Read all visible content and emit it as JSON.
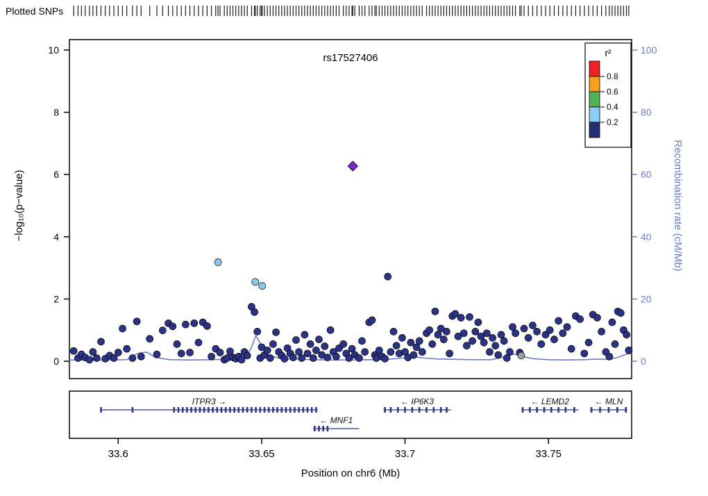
{
  "header": {
    "plotted_snps_label": "Plotted SNPs"
  },
  "chart_data": {
    "type": "scatter",
    "title": "rs17527406",
    "xlabel": "Position on chr6 (Mb)",
    "ylabel_left": "−log₁₀(p−value)",
    "ylabel_right": "Recombination rate (cM/Mb)",
    "xlim": [
      33.583,
      33.779
    ],
    "ylim_left": [
      0,
      10
    ],
    "ylim_right": [
      0,
      100
    ],
    "x_ticks": [
      "33.6",
      "33.65",
      "33.7",
      "33.75"
    ],
    "y_ticks_left": [
      0,
      2,
      4,
      6,
      8,
      10
    ],
    "y_ticks_right": [
      0,
      20,
      40,
      60,
      80,
      100
    ],
    "grid": false,
    "legend": {
      "title": "r²",
      "position": "top-right",
      "colors": [
        "#EC2226",
        "#F9A11B",
        "#52B153",
        "#8CCCF0",
        "#262F74"
      ],
      "labels": [
        "0.8",
        "0.6",
        "0.4",
        "0.2"
      ]
    },
    "index_snp": {
      "name": "rs17527406",
      "pos": 33.6818,
      "log10p": 6.27,
      "color": "#7D26CD",
      "shape": "diamond"
    },
    "ld_groups": [
      {
        "name": "r2_0.2_0.4",
        "color": "#8CCCF0",
        "points": [
          [
            33.6348,
            3.18
          ],
          [
            33.6478,
            2.55
          ],
          [
            33.6502,
            2.42
          ]
        ]
      },
      {
        "name": "r2_below_0.2",
        "color": "#2B3387",
        "points": [
          [
            33.5845,
            0.33
          ],
          [
            33.586,
            0.1
          ],
          [
            33.5872,
            0.22
          ],
          [
            33.5885,
            0.12
          ],
          [
            33.59,
            0.05
          ],
          [
            33.5912,
            0.3
          ],
          [
            33.5925,
            0.1
          ],
          [
            33.594,
            0.63
          ],
          [
            33.5955,
            0.08
          ],
          [
            33.597,
            0.18
          ],
          [
            33.5985,
            0.1
          ],
          [
            33.6,
            0.28
          ],
          [
            33.6015,
            1.05
          ],
          [
            33.603,
            0.4
          ],
          [
            33.605,
            0.1
          ],
          [
            33.6065,
            1.28
          ],
          [
            33.608,
            0.15
          ],
          [
            33.611,
            0.72
          ],
          [
            33.6135,
            0.22
          ],
          [
            33.6155,
            0.99
          ],
          [
            33.6175,
            1.22
          ],
          [
            33.619,
            1.12
          ],
          [
            33.6205,
            0.55
          ],
          [
            33.622,
            0.25
          ],
          [
            33.6235,
            1.18
          ],
          [
            33.625,
            0.28
          ],
          [
            33.6265,
            1.22
          ],
          [
            33.628,
            0.6
          ],
          [
            33.6295,
            1.25
          ],
          [
            33.631,
            1.13
          ],
          [
            33.6325,
            0.15
          ],
          [
            33.634,
            0.4
          ],
          [
            33.6355,
            0.28
          ],
          [
            33.637,
            0.05
          ],
          [
            33.638,
            0.1
          ],
          [
            33.639,
            0.32
          ],
          [
            33.64,
            0.12
          ],
          [
            33.641,
            0.08
          ],
          [
            33.642,
            0.15
          ],
          [
            33.643,
            0.05
          ],
          [
            33.644,
            0.3
          ],
          [
            33.645,
            0.18
          ],
          [
            33.6465,
            1.75
          ],
          [
            33.6475,
            1.58
          ],
          [
            33.6485,
            0.95
          ],
          [
            33.6495,
            0.1
          ],
          [
            33.65,
            0.45
          ],
          [
            33.651,
            0.2
          ],
          [
            33.652,
            0.35
          ],
          [
            33.653,
            0.1
          ],
          [
            33.654,
            0.55
          ],
          [
            33.655,
            0.93
          ],
          [
            33.656,
            0.3
          ],
          [
            33.657,
            0.18
          ],
          [
            33.658,
            0.08
          ],
          [
            33.659,
            0.42
          ],
          [
            33.66,
            0.25
          ],
          [
            33.661,
            0.12
          ],
          [
            33.662,
            0.68
          ],
          [
            33.663,
            0.3
          ],
          [
            33.664,
            0.1
          ],
          [
            33.665,
            0.85
          ],
          [
            33.666,
            0.25
          ],
          [
            33.667,
            0.55
          ],
          [
            33.668,
            0.1
          ],
          [
            33.669,
            0.35
          ],
          [
            33.67,
            0.7
          ],
          [
            33.671,
            0.2
          ],
          [
            33.672,
            0.48
          ],
          [
            33.673,
            0.12
          ],
          [
            33.674,
            1.0
          ],
          [
            33.675,
            0.3
          ],
          [
            33.676,
            0.15
          ],
          [
            33.677,
            0.42
          ],
          [
            33.6785,
            0.55
          ],
          [
            33.6795,
            0.25
          ],
          [
            33.6805,
            0.1
          ],
          [
            33.6815,
            0.4
          ],
          [
            33.6825,
            0.2
          ],
          [
            33.684,
            0.1
          ],
          [
            33.685,
            0.65
          ],
          [
            33.686,
            0.3
          ],
          [
            33.6875,
            1.25
          ],
          [
            33.6885,
            1.32
          ],
          [
            33.6895,
            0.2
          ],
          [
            33.69,
            0.1
          ],
          [
            33.691,
            0.35
          ],
          [
            33.692,
            0.15
          ],
          [
            33.693,
            0.08
          ],
          [
            33.694,
            2.72
          ],
          [
            33.695,
            0.3
          ],
          [
            33.696,
            0.95
          ],
          [
            33.697,
            0.5
          ],
          [
            33.698,
            0.25
          ],
          [
            33.699,
            0.75
          ],
          [
            33.7,
            0.3
          ],
          [
            33.701,
            0.12
          ],
          [
            33.702,
            0.6
          ],
          [
            33.703,
            0.2
          ],
          [
            33.704,
            0.45
          ],
          [
            33.705,
            0.65
          ],
          [
            33.706,
            0.3
          ],
          [
            33.7075,
            0.9
          ],
          [
            33.7085,
            1.0
          ],
          [
            33.7095,
            0.55
          ],
          [
            33.7105,
            1.6
          ],
          [
            33.7115,
            0.85
          ],
          [
            33.7125,
            1.05
          ],
          [
            33.7135,
            0.7
          ],
          [
            33.7145,
            0.95
          ],
          [
            33.7155,
            0.25
          ],
          [
            33.7165,
            1.45
          ],
          [
            33.7175,
            1.52
          ],
          [
            33.7185,
            0.8
          ],
          [
            33.7195,
            1.4
          ],
          [
            33.7205,
            0.9
          ],
          [
            33.7215,
            0.5
          ],
          [
            33.7225,
            1.42
          ],
          [
            33.7235,
            0.65
          ],
          [
            33.7245,
            0.95
          ],
          [
            33.7255,
            1.25
          ],
          [
            33.7265,
            0.8
          ],
          [
            33.7275,
            0.6
          ],
          [
            33.7285,
            0.9
          ],
          [
            33.7295,
            0.3
          ],
          [
            33.7305,
            0.75
          ],
          [
            33.7315,
            0.5
          ],
          [
            33.7325,
            0.2
          ],
          [
            33.7335,
            0.85
          ],
          [
            33.7345,
            0.65
          ],
          [
            33.7355,
            0.1
          ],
          [
            33.7365,
            0.3
          ],
          [
            33.7375,
            1.1
          ],
          [
            33.7385,
            0.9
          ],
          [
            33.74,
            0.28
          ],
          [
            33.7415,
            1.05
          ],
          [
            33.743,
            0.75
          ],
          [
            33.7445,
            1.15
          ],
          [
            33.746,
            0.95
          ],
          [
            33.7475,
            0.55
          ],
          [
            33.749,
            0.85
          ],
          [
            33.7505,
            1.0
          ],
          [
            33.752,
            0.7
          ],
          [
            33.7535,
            1.3
          ],
          [
            33.755,
            0.9
          ],
          [
            33.7565,
            1.1
          ],
          [
            33.758,
            0.4
          ],
          [
            33.7595,
            1.45
          ],
          [
            33.761,
            1.35
          ],
          [
            33.7625,
            0.25
          ],
          [
            33.764,
            0.6
          ],
          [
            33.7655,
            1.5
          ],
          [
            33.767,
            1.4
          ],
          [
            33.7685,
            0.95
          ],
          [
            33.77,
            0.3
          ],
          [
            33.7712,
            0.15
          ],
          [
            33.7722,
            1.25
          ],
          [
            33.7732,
            0.55
          ],
          [
            33.7742,
            1.6
          ],
          [
            33.7752,
            1.55
          ],
          [
            33.7762,
            1.0
          ],
          [
            33.7772,
            0.85
          ],
          [
            33.778,
            0.35
          ]
        ]
      },
      {
        "name": "no_ld_info",
        "color": "#9e9e9e",
        "points": [
          [
            33.7405,
            0.18
          ]
        ]
      }
    ],
    "recomb_line": [
      [
        33.583,
        0.4
      ],
      [
        33.595,
        0.4
      ],
      [
        33.603,
        0.5
      ],
      [
        33.607,
        2.6
      ],
      [
        33.61,
        2.9
      ],
      [
        33.613,
        1.2
      ],
      [
        33.618,
        0.5
      ],
      [
        33.625,
        0.4
      ],
      [
        33.632,
        0.5
      ],
      [
        33.638,
        0.6
      ],
      [
        33.643,
        1.2
      ],
      [
        33.646,
        3.5
      ],
      [
        33.648,
        8.2
      ],
      [
        33.65,
        5.0
      ],
      [
        33.652,
        2.0
      ],
      [
        33.656,
        1.0
      ],
      [
        33.661,
        0.7
      ],
      [
        33.668,
        0.5
      ],
      [
        33.675,
        0.4
      ],
      [
        33.682,
        0.4
      ],
      [
        33.688,
        0.5
      ],
      [
        33.694,
        0.6
      ],
      [
        33.699,
        1.0
      ],
      [
        33.703,
        1.4
      ],
      [
        33.707,
        1.0
      ],
      [
        33.712,
        0.7
      ],
      [
        33.718,
        0.6
      ],
      [
        33.724,
        0.5
      ],
      [
        33.73,
        0.5
      ],
      [
        33.735,
        1.5
      ],
      [
        33.738,
        2.3
      ],
      [
        33.741,
        1.5
      ],
      [
        33.745,
        0.8
      ],
      [
        33.75,
        0.5
      ],
      [
        33.756,
        0.4
      ],
      [
        33.762,
        0.5
      ],
      [
        33.767,
        0.7
      ],
      [
        33.771,
        0.6
      ],
      [
        33.774,
        1.2
      ],
      [
        33.777,
        2.2
      ],
      [
        33.779,
        2.6
      ]
    ],
    "recomb_color": "#6B7CC9"
  },
  "genes_panel": {
    "genes": [
      {
        "name": "ITPR3",
        "strand": "+",
        "row": 1,
        "start": 33.594,
        "end": 33.6695,
        "exons": [
          33.594,
          33.605,
          33.6195,
          33.621,
          33.6225,
          33.624,
          33.6255,
          33.627,
          33.6285,
          33.63,
          33.6315,
          33.633,
          33.6345,
          33.636,
          33.6375,
          33.639,
          33.6405,
          33.642,
          33.6435,
          33.645,
          33.6465,
          33.648,
          33.6495,
          33.651,
          33.6525,
          33.654,
          33.6555,
          33.657,
          33.6585,
          33.66,
          33.6615,
          33.663,
          33.6645,
          33.666,
          33.6675,
          33.669
        ]
      },
      {
        "name": "IP6K3",
        "strand": "-",
        "row": 1,
        "start": 33.6925,
        "end": 33.716,
        "exons": [
          33.693,
          33.695,
          33.6975,
          33.7,
          33.7025,
          33.705,
          33.7075,
          33.71,
          33.7125,
          33.7145
        ]
      },
      {
        "name": "LEMD2",
        "strand": "-",
        "row": 1,
        "start": 33.7405,
        "end": 33.7605,
        "exons": [
          33.741,
          33.7435,
          33.746,
          33.7485,
          33.751,
          33.7535,
          33.756,
          33.759
        ]
      },
      {
        "name": "MLN",
        "strand": "-",
        "row": 1,
        "start": 33.7645,
        "end": 33.7775,
        "exons": [
          33.765,
          33.768,
          33.771,
          33.774,
          33.777
        ]
      },
      {
        "name": "MNF1",
        "strand": "-",
        "row": 2,
        "start": 33.668,
        "end": 33.684,
        "exons": [
          33.6685,
          33.67,
          33.6715,
          33.673
        ]
      }
    ],
    "gene_color": "#2B3387"
  }
}
